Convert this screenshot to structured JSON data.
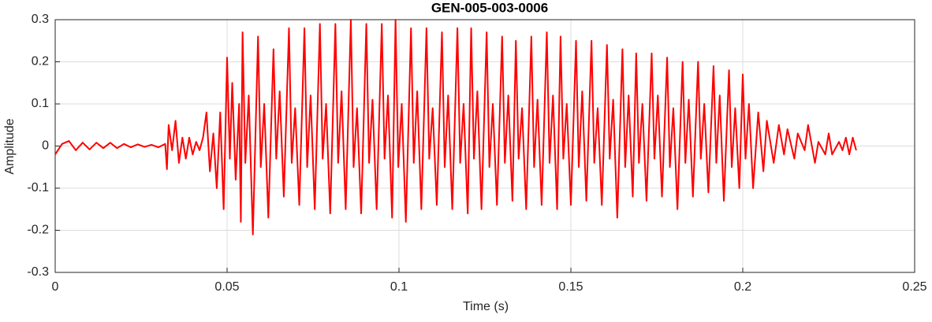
{
  "chart_data": {
    "type": "line",
    "title": "GEN-005-003-0006",
    "xlabel": "Time (s)",
    "ylabel": "Amplitude",
    "color": "#ff0000",
    "grid": true,
    "xlim": [
      0,
      0.25
    ],
    "xticks": [
      0,
      0.05,
      0.1,
      0.15,
      0.2,
      0.25
    ],
    "ylim": [
      -0.3,
      0.3
    ],
    "yticks": [
      -0.3,
      -0.2,
      -0.1,
      0,
      0.1,
      0.2,
      0.3
    ],
    "x": [
      0,
      0.002,
      0.004,
      0.006,
      0.008,
      0.01,
      0.012,
      0.014,
      0.016,
      0.018,
      0.02,
      0.022,
      0.024,
      0.026,
      0.028,
      0.03,
      0.032,
      0.0325,
      0.033,
      0.034,
      0.035,
      0.036,
      0.037,
      0.038,
      0.039,
      0.04,
      0.041,
      0.042,
      0.043,
      0.044,
      0.045,
      0.046,
      0.047,
      0.048,
      0.049,
      0.05,
      0.0508,
      0.0515,
      0.0525,
      0.0535,
      0.054,
      0.0545,
      0.0553,
      0.0563,
      0.0575,
      0.059,
      0.0598,
      0.0608,
      0.062,
      0.0635,
      0.0643,
      0.0653,
      0.0665,
      0.068,
      0.0688,
      0.0698,
      0.071,
      0.0725,
      0.0733,
      0.0743,
      0.0755,
      0.077,
      0.0778,
      0.0788,
      0.08,
      0.0815,
      0.0823,
      0.0833,
      0.0845,
      0.086,
      0.0868,
      0.0878,
      0.089,
      0.0905,
      0.0913,
      0.0923,
      0.0935,
      0.095,
      0.0958,
      0.0968,
      0.098,
      0.099,
      0.0998,
      0.1008,
      0.102,
      0.1035,
      0.1043,
      0.1053,
      0.1065,
      0.108,
      0.1088,
      0.1098,
      0.111,
      0.1125,
      0.1133,
      0.1143,
      0.1155,
      0.117,
      0.1178,
      0.1188,
      0.12,
      0.121,
      0.1218,
      0.1228,
      0.124,
      0.1255,
      0.1263,
      0.1273,
      0.1285,
      0.13,
      0.1308,
      0.1318,
      0.133,
      0.134,
      0.1348,
      0.1358,
      0.137,
      0.1385,
      0.1393,
      0.1403,
      0.1415,
      0.143,
      0.1438,
      0.1448,
      0.146,
      0.147,
      0.1478,
      0.1488,
      0.15,
      0.1515,
      0.1523,
      0.1533,
      0.1545,
      0.156,
      0.1568,
      0.1578,
      0.159,
      0.1605,
      0.1613,
      0.1623,
      0.1635,
      0.165,
      0.1658,
      0.1668,
      0.168,
      0.169,
      0.1698,
      0.1708,
      0.172,
      0.1735,
      0.1743,
      0.1753,
      0.1765,
      0.178,
      0.1788,
      0.1798,
      0.181,
      0.1825,
      0.1833,
      0.1843,
      0.1855,
      0.187,
      0.1878,
      0.1888,
      0.19,
      0.1915,
      0.1923,
      0.1933,
      0.1945,
      0.196,
      0.1968,
      0.1978,
      0.199,
      0.2,
      0.2008,
      0.2018,
      0.203,
      0.2045,
      0.206,
      0.207,
      0.209,
      0.2105,
      0.212,
      0.213,
      0.215,
      0.216,
      0.218,
      0.219,
      0.221,
      0.222,
      0.224,
      0.225,
      0.226,
      0.228,
      0.229,
      0.23,
      0.231,
      0.232,
      0.233
    ],
    "values": [
      -0.02,
      0.005,
      0.012,
      -0.01,
      0.008,
      -0.008,
      0.008,
      -0.005,
      0.008,
      -0.005,
      0.005,
      -0.003,
      0.004,
      -0.002,
      0.003,
      -0.003,
      0.005,
      -0.055,
      0.05,
      -0.01,
      0.06,
      -0.04,
      0.02,
      -0.03,
      0.02,
      -0.02,
      0.01,
      -0.01,
      0.02,
      0.08,
      -0.06,
      0.03,
      -0.1,
      0.08,
      -0.15,
      0.21,
      -0.03,
      0.15,
      -0.08,
      0.1,
      -0.18,
      0.27,
      -0.04,
      0.12,
      -0.21,
      0.26,
      -0.05,
      0.1,
      -0.17,
      0.23,
      -0.03,
      0.13,
      -0.12,
      0.28,
      -0.04,
      0.09,
      -0.14,
      0.28,
      -0.05,
      0.12,
      -0.15,
      0.29,
      -0.03,
      0.1,
      -0.16,
      0.29,
      -0.04,
      0.13,
      -0.15,
      0.3,
      -0.05,
      0.09,
      -0.16,
      0.29,
      -0.04,
      0.11,
      -0.15,
      0.29,
      -0.03,
      0.12,
      -0.17,
      0.3,
      -0.05,
      0.1,
      -0.18,
      0.28,
      -0.04,
      0.13,
      -0.15,
      0.28,
      -0.03,
      0.09,
      -0.14,
      0.27,
      -0.05,
      0.12,
      -0.15,
      0.28,
      -0.04,
      0.1,
      -0.16,
      0.28,
      -0.03,
      0.13,
      -0.15,
      0.27,
      -0.05,
      0.1,
      -0.14,
      0.26,
      -0.04,
      0.12,
      -0.13,
      0.25,
      -0.03,
      0.09,
      -0.15,
      0.26,
      -0.05,
      0.11,
      -0.14,
      0.27,
      -0.04,
      0.12,
      -0.15,
      0.26,
      -0.03,
      0.1,
      -0.14,
      0.25,
      -0.05,
      0.13,
      -0.13,
      0.25,
      -0.04,
      0.09,
      -0.14,
      0.24,
      -0.03,
      0.11,
      -0.17,
      0.23,
      -0.05,
      0.12,
      -0.12,
      0.22,
      -0.04,
      0.1,
      -0.13,
      0.22,
      -0.03,
      0.12,
      -0.12,
      0.21,
      -0.05,
      0.09,
      -0.15,
      0.2,
      -0.04,
      0.11,
      -0.12,
      0.2,
      -0.03,
      0.1,
      -0.11,
      0.19,
      -0.04,
      0.12,
      -0.13,
      0.18,
      -0.05,
      0.09,
      -0.1,
      0.17,
      -0.03,
      0.1,
      -0.1,
      0.08,
      -0.06,
      0.06,
      -0.04,
      0.05,
      -0.02,
      0.04,
      -0.03,
      0.03,
      -0.01,
      0.05,
      -0.04,
      0.01,
      -0.02,
      0.03,
      -0.02,
      0.01,
      -0.01,
      0.02,
      -0.02,
      0.02,
      -0.01
    ]
  }
}
